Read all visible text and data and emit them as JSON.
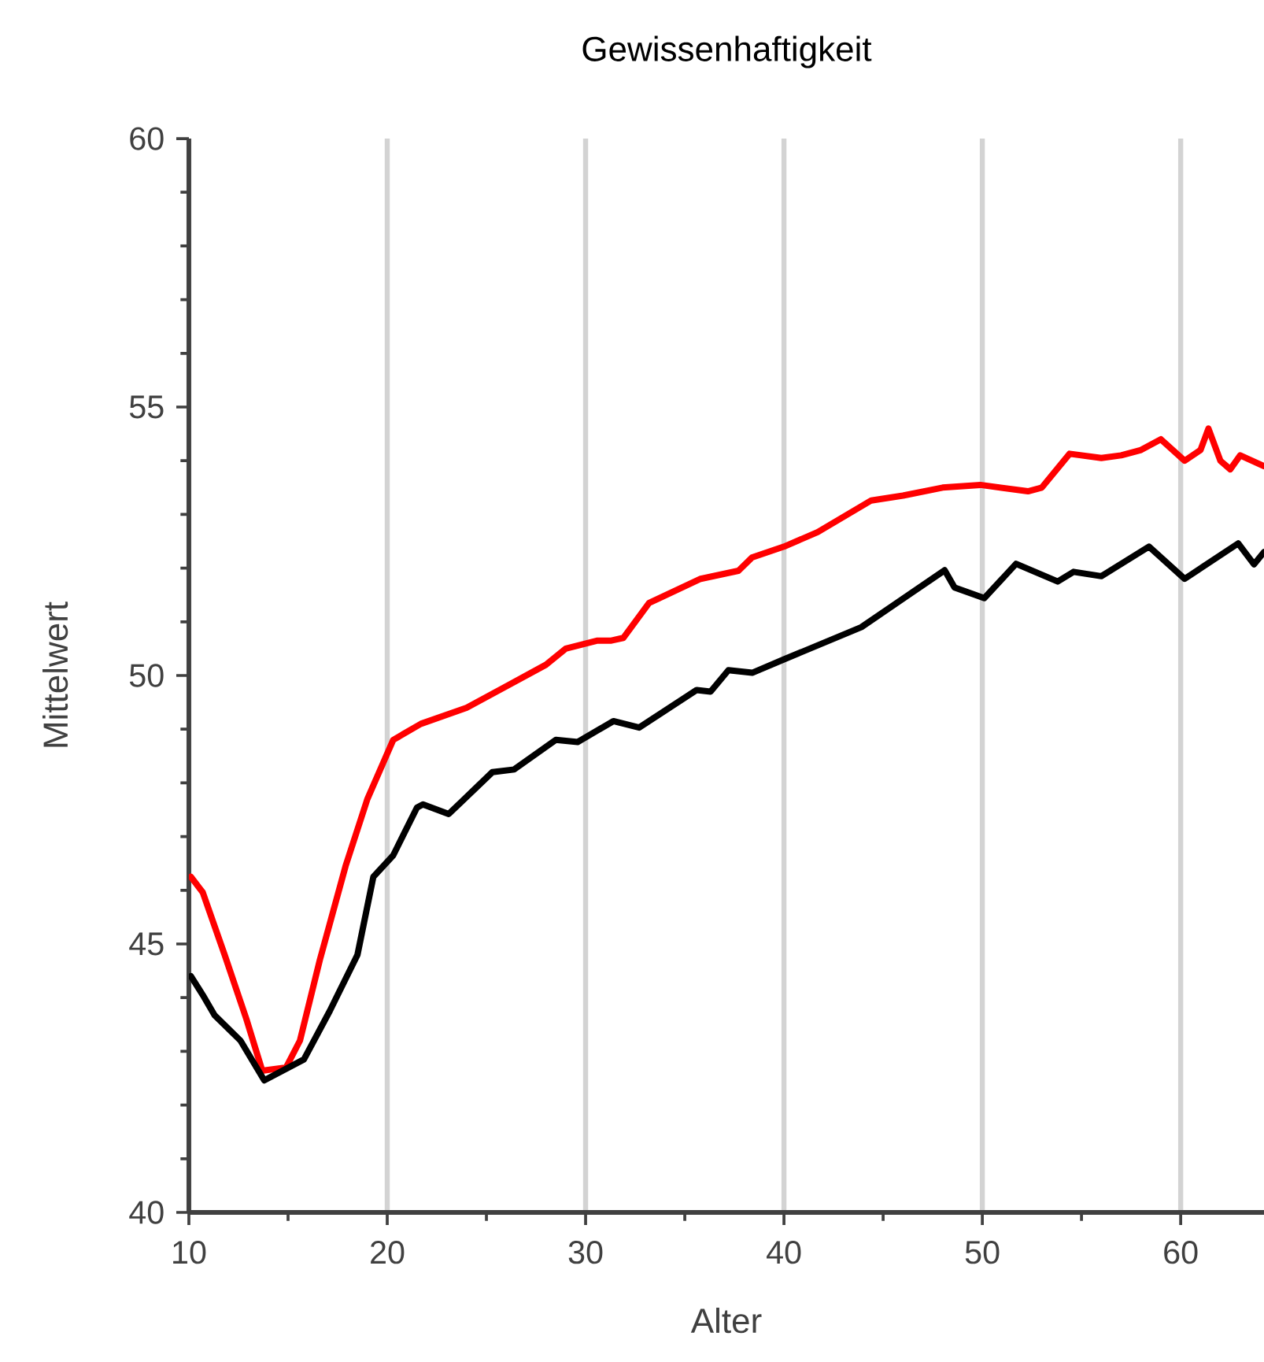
{
  "chart_data": {
    "type": "line",
    "title": "Gewissenhaftigkeit",
    "xlabel": "Alter",
    "ylabel": "Mittelwert",
    "xlim": [
      10,
      64.2
    ],
    "ylim": [
      40,
      60
    ],
    "xticks": [
      10,
      20,
      30,
      40,
      50,
      60
    ],
    "yticks": [
      40,
      45,
      50,
      55,
      60
    ],
    "grid": "x",
    "marker": "none",
    "line_style": "solid",
    "series": [
      {
        "color": "#ff0000",
        "x": [
          10.1,
          10.7,
          11.8,
          12.9,
          13.7,
          14.9,
          15.6,
          16.6,
          17.9,
          19,
          20.3,
          21.7,
          24,
          26,
          28,
          29,
          30.6,
          31.3,
          31.9,
          33.2,
          35.8,
          37.7,
          38.4,
          40,
          41.7,
          44.4,
          46,
          48,
          49.9,
          52.3,
          53,
          54.4,
          56,
          57,
          58,
          59,
          60.2,
          61,
          61.4,
          62,
          62.5,
          63,
          64.2
        ],
        "values": [
          46.25,
          45.96,
          44.8,
          43.6,
          42.64,
          42.7,
          43.2,
          44.7,
          46.45,
          47.7,
          48.8,
          49.1,
          49.4,
          49.8,
          50.2,
          50.5,
          50.65,
          50.65,
          50.7,
          51.35,
          51.8,
          51.95,
          52.2,
          52.4,
          52.67,
          53.26,
          53.35,
          53.5,
          53.55,
          53.43,
          53.5,
          54.13,
          54.05,
          54.1,
          54.2,
          54.4,
          54.0,
          54.2,
          54.6,
          54.0,
          53.84,
          54.1,
          53.9
        ]
      },
      {
        "color": "#000000",
        "x": [
          10.1,
          10.7,
          11.3,
          12.6,
          13.8,
          15.8,
          17.1,
          18.5,
          19.3,
          20.3,
          21.5,
          21.8,
          23.1,
          25.3,
          26.4,
          28.5,
          29.6,
          31.4,
          32.7,
          35.6,
          36.3,
          37.2,
          38.4,
          40,
          43.9,
          48.1,
          48.6,
          50.1,
          51.7,
          53.8,
          54.6,
          56,
          58.4,
          60.2,
          62.9,
          63.7,
          64.2
        ],
        "values": [
          44.4,
          44.05,
          43.67,
          43.2,
          42.46,
          42.85,
          43.75,
          44.8,
          46.25,
          46.65,
          47.54,
          47.6,
          47.42,
          48.2,
          48.25,
          48.8,
          48.76,
          49.15,
          49.03,
          49.73,
          49.7,
          50.1,
          50.05,
          50.3,
          50.9,
          51.96,
          51.64,
          51.44,
          52.08,
          51.75,
          51.93,
          51.85,
          52.4,
          51.8,
          52.46,
          52.07,
          52.3
        ]
      }
    ]
  }
}
